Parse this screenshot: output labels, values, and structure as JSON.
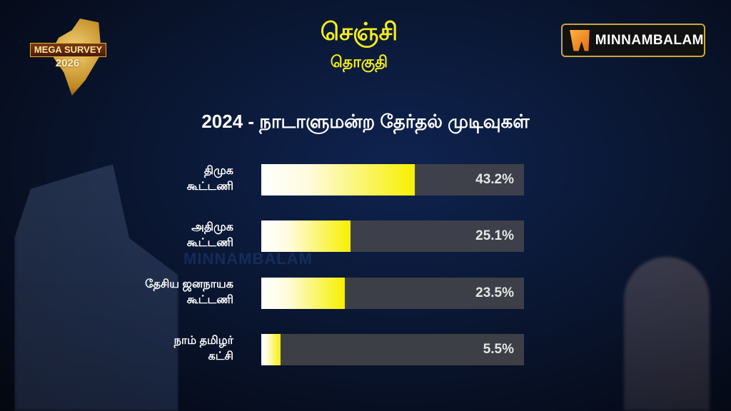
{
  "branding": {
    "left_logo_text": "MEGA SURVEY",
    "left_logo_year": "2026",
    "right_logo_text": "MINNAMBALAM",
    "watermark": "MINNAMBALAM"
  },
  "header": {
    "constituency": "செஞ்சி",
    "constituency_sub": "தொகுதி"
  },
  "chart_data": {
    "type": "bar",
    "orientation": "horizontal",
    "title": "2024 - நாடாளுமன்ற தேர்தல் முடிவுகள்",
    "categories": [
      [
        "திமுக",
        "கூட்டணி"
      ],
      [
        "அதிமுக",
        "கூட்டணி"
      ],
      [
        "தேசிய ஜனநாயக",
        "கூட்டணி"
      ],
      [
        "நாம் தமிழர்",
        "கட்சி"
      ]
    ],
    "values": [
      43.2,
      25.1,
      23.5,
      5.5
    ],
    "value_labels": [
      "43.2%",
      "25.1%",
      "23.5%",
      "5.5%"
    ],
    "xlim": [
      0,
      74
    ],
    "grid": false,
    "colors": {
      "bar_start": "#ffffff",
      "bar_end": "#f7f000",
      "track": "#46464b",
      "title": "#f5ec1a"
    }
  }
}
